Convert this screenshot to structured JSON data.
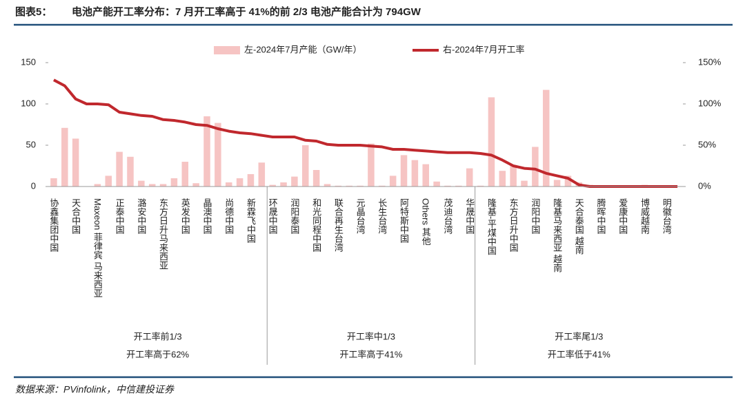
{
  "header": {
    "label": "图表5：",
    "title": "电池产能开工率分布：7 月开工率高于 41%的前 2/3 电池产能合计为 794GW"
  },
  "chart_data": {
    "type": "bar-line",
    "categories": [
      "协鑫集团中国",
      null,
      "天合中国",
      null,
      "Maxeon 菲律宾 马来西亚",
      null,
      "正泰中国",
      null,
      "潞安中国",
      null,
      "东方日升马来西亚",
      null,
      "英发中国",
      null,
      "晶澳中国",
      null,
      "尚德中国",
      null,
      "新霖飞中国",
      null,
      "环晟中国",
      null,
      "润阳泰国",
      null,
      "和光同程中国",
      null,
      "联合再生台湾",
      null,
      "元晶台湾",
      null,
      "长生台湾",
      null,
      "阿特斯中国",
      null,
      "Others 其他",
      null,
      "茂迪台湾",
      null,
      "华晟中国",
      null,
      "隆基-平煤中国",
      null,
      "东方日升中国",
      null,
      "润阳中国",
      null,
      "隆基马来西亚 越南",
      null,
      "天合泰国 越南",
      null,
      "腾晖中国",
      null,
      "爱康中国",
      null,
      "博威越南",
      null,
      "明徽台湾",
      null
    ],
    "series": [
      {
        "name": "左-2024年7月产能（GW/年）",
        "color": "#f6c4c3",
        "type": "bar",
        "values": [
          10,
          71,
          58,
          0,
          3,
          13,
          42,
          36,
          7,
          3,
          3,
          10,
          30,
          4,
          85,
          77,
          5,
          10,
          15,
          29,
          2,
          5,
          12,
          50,
          20,
          3,
          1,
          1,
          1,
          52,
          1,
          13,
          38,
          32,
          27,
          6,
          1,
          1,
          22,
          1,
          108,
          19,
          26,
          7,
          48,
          117,
          8,
          13,
          5,
          2,
          1,
          1,
          1,
          1,
          2,
          1,
          1,
          0
        ]
      },
      {
        "name": "右-2024年7月开工率",
        "color": "#c0282d",
        "type": "line",
        "axis": "y2",
        "values": [
          129,
          122,
          106,
          100,
          100,
          99,
          90,
          88,
          86,
          85,
          81,
          80,
          78,
          75,
          74,
          70,
          67,
          65,
          64,
          62,
          60,
          60,
          60,
          56,
          55,
          51,
          50,
          50,
          50,
          49,
          48,
          45,
          45,
          44,
          43,
          42,
          41,
          41,
          41,
          40,
          38,
          32,
          25,
          22,
          21,
          16,
          13,
          10,
          2,
          0,
          0,
          0,
          0,
          0,
          0,
          0,
          0,
          0
        ]
      }
    ],
    "ylim": [
      0,
      150
    ],
    "yticks": [
      0,
      50,
      100,
      150
    ],
    "y2lim": [
      0,
      150
    ],
    "y2ticks": [
      {
        "value": 0,
        "label": "0%"
      },
      {
        "value": 50,
        "label": "50%"
      },
      {
        "value": 100,
        "label": "100%"
      },
      {
        "value": 150,
        "label": "150%"
      }
    ],
    "groups": [
      {
        "name": "开工率前1/3",
        "note": "开工率高于62%"
      },
      {
        "name": "开工率中1/3",
        "note": "开工率高于41%"
      },
      {
        "name": "开工率尾1/3",
        "note": "开工率低于41%"
      }
    ]
  },
  "source": "数据来源：PVinfolink，中信建投证券"
}
